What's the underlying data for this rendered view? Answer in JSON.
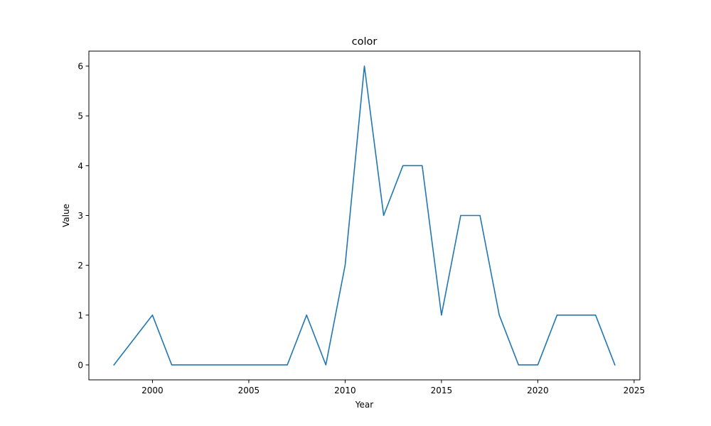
{
  "chart_data": {
    "type": "line",
    "title": "color",
    "xlabel": "Year",
    "ylabel": "Value",
    "xlim": [
      1996.7,
      2025.3
    ],
    "ylim": [
      -0.3,
      6.3
    ],
    "xticks": [
      2000,
      2005,
      2010,
      2015,
      2020,
      2025
    ],
    "yticks": [
      0,
      1,
      2,
      3,
      4,
      5,
      6
    ],
    "grid": false,
    "series": [
      {
        "color": "#1f77b4",
        "x": [
          1998,
          2000,
          2001,
          2002,
          2003,
          2004,
          2005,
          2006,
          2007,
          2008,
          2009,
          2010,
          2011,
          2012,
          2013,
          2014,
          2015,
          2016,
          2017,
          2018,
          2019,
          2020,
          2021,
          2022,
          2023,
          2024
        ],
        "y": [
          0,
          1,
          0,
          0,
          0,
          0,
          0,
          0,
          0,
          1,
          0,
          2,
          6,
          3,
          4,
          4,
          1,
          3,
          3,
          1,
          0,
          0,
          1,
          1,
          1,
          0
        ]
      }
    ]
  }
}
